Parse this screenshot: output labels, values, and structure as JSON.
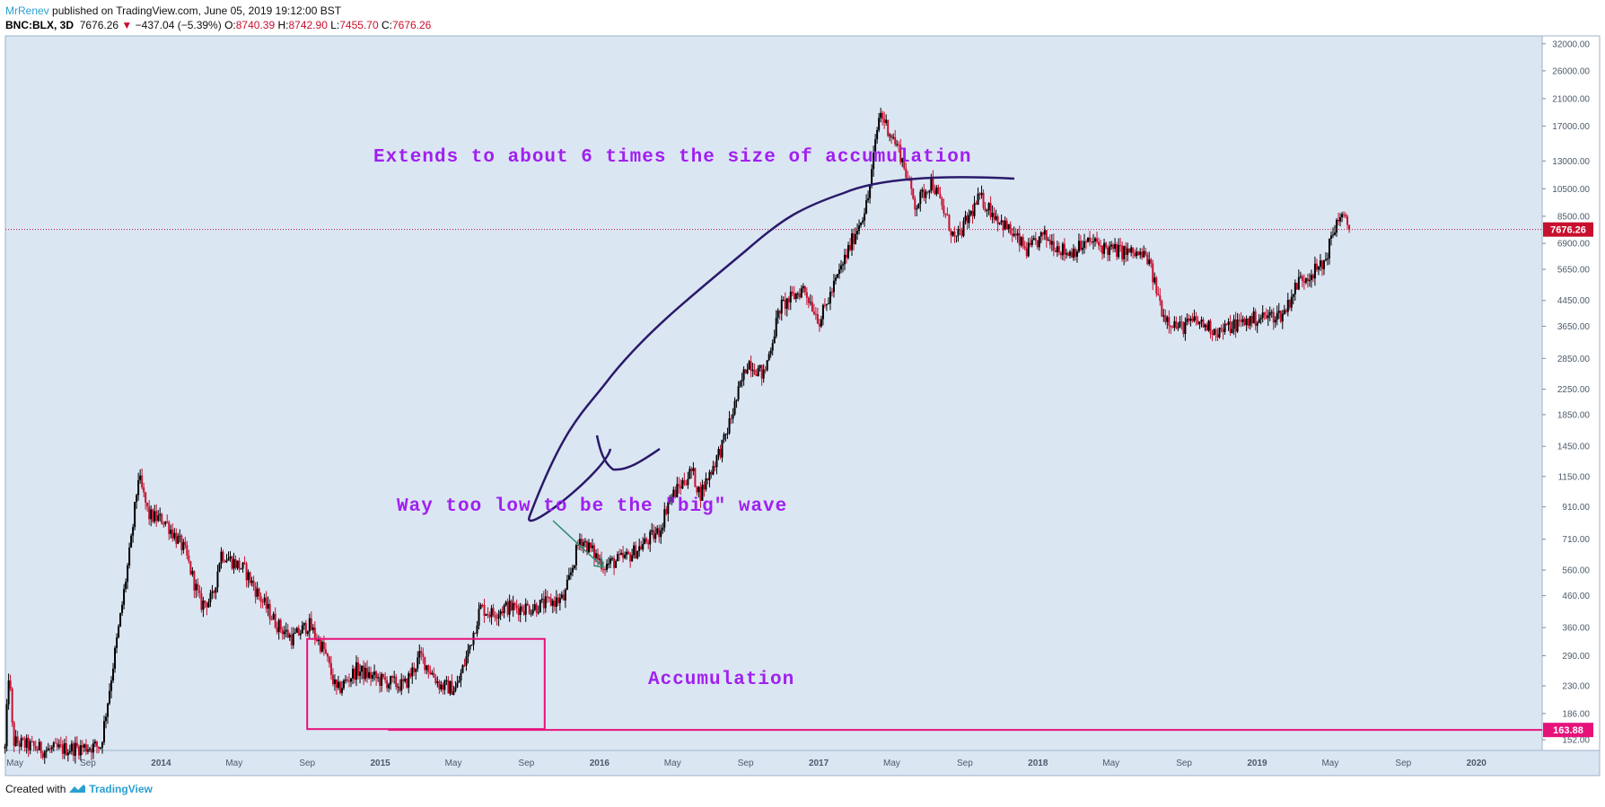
{
  "header": {
    "author": "MrRenev",
    "published": "published on TradingView.com, June 05, 2019 19:12:00 BST",
    "symbol": "BNC:BLX, 3D",
    "last": "7676.26",
    "change": "−437.04 (−5.39%)",
    "o_label": "O:",
    "o": "8740.39",
    "h_label": "H:",
    "h": "8742.90",
    "l_label": "L:",
    "l": "7455.70",
    "c_label": "C:",
    "c": "7676.26"
  },
  "footer": {
    "created_with": "Created with",
    "brand": "TradingView"
  },
  "colors": {
    "background": "#dbe6f3",
    "up": "#000000",
    "down": "#c8102e",
    "price_line": "#c8102e",
    "support": "#e6127a",
    "annotation": "#a020f0",
    "curve_arrow": "#2a1a6a",
    "small_arrow": "#2a8a6a"
  },
  "chart_data": {
    "type": "candlestick",
    "yscale": "log",
    "ylim": [
      140,
      34000
    ],
    "y_ticks": [
      "32000.00",
      "26000.00",
      "21000.00",
      "17000.00",
      "13000.00",
      "10500.00",
      "8500.00",
      "6900.00",
      "5650.00",
      "4450.00",
      "3650.00",
      "2850.00",
      "2250.00",
      "1850.00",
      "1450.00",
      "1150.00",
      "910.00",
      "710.00",
      "560.00",
      "460.00",
      "360.00",
      "290.00",
      "230.00",
      "186.00",
      "152.00"
    ],
    "x_ticks": [
      "May",
      "Sep",
      "2014",
      "May",
      "Sep",
      "2015",
      "May",
      "Sep",
      "2016",
      "May",
      "Sep",
      "2017",
      "May",
      "Sep",
      "2018",
      "May",
      "Sep",
      "2019",
      "May",
      "Sep",
      "2020"
    ],
    "price_markers": [
      {
        "value": 7676.26,
        "label": "7676.26",
        "color": "#c8102e"
      },
      {
        "value": 163.88,
        "label": "163.88",
        "color": "#e6127a"
      }
    ],
    "annotations": [
      {
        "text": "Extends to about 6 times the size of accumulation"
      },
      {
        "text": "Way too low to be the \"big\" wave"
      },
      {
        "text": "Accumulation"
      }
    ],
    "accumulation_box": {
      "x_start": "2014-09",
      "x_end": "2015-10",
      "y_low": 165,
      "y_high": 330
    },
    "path_date_range": [
      "2013-04-15",
      "2019-06-05"
    ],
    "path_key_prices": [
      [
        0,
        142
      ],
      [
        0.005,
        265
      ],
      [
        0.01,
        150
      ],
      [
        0.05,
        140
      ],
      [
        0.12,
        145
      ],
      [
        0.145,
        400
      ],
      [
        0.158,
        700
      ],
      [
        0.167,
        1150
      ],
      [
        0.18,
        850
      ],
      [
        0.2,
        820
      ],
      [
        0.225,
        650
      ],
      [
        0.245,
        430
      ],
      [
        0.26,
        450
      ],
      [
        0.27,
        640
      ],
      [
        0.3,
        560
      ],
      [
        0.32,
        450
      ],
      [
        0.34,
        370
      ],
      [
        0.36,
        330
      ],
      [
        0.38,
        370
      ],
      [
        0.4,
        300
      ],
      [
        0.415,
        220
      ],
      [
        0.44,
        260
      ],
      [
        0.47,
        240
      ],
      [
        0.5,
        230
      ],
      [
        0.52,
        290
      ],
      [
        0.545,
        230
      ],
      [
        0.565,
        225
      ],
      [
        0.58,
        300
      ],
      [
        0.595,
        420
      ],
      [
        0.61,
        400
      ],
      [
        0.625,
        420
      ],
      [
        0.66,
        420
      ],
      [
        0.7,
        450
      ],
      [
        0.72,
        720
      ],
      [
        0.75,
        580
      ],
      [
        0.78,
        620
      ],
      [
        0.82,
        760
      ],
      [
        0.83,
        950
      ],
      [
        0.86,
        1200
      ],
      [
        0.87,
        1000
      ],
      [
        0.9,
        1500
      ],
      [
        0.93,
        2800
      ],
      [
        0.95,
        2500
      ],
      [
        0.97,
        4200
      ],
      [
        1.0,
        4900
      ],
      [
        1.02,
        3800
      ],
      [
        1.05,
        6000
      ],
      [
        1.08,
        9500
      ],
      [
        1.095,
        19000
      ],
      [
        1.12,
        14000
      ],
      [
        1.14,
        9200
      ],
      [
        1.16,
        11200
      ],
      [
        1.19,
        7000
      ],
      [
        1.22,
        9800
      ],
      [
        1.25,
        8000
      ],
      [
        1.28,
        6500
      ],
      [
        1.3,
        7300
      ],
      [
        1.33,
        6400
      ],
      [
        1.36,
        7000
      ],
      [
        1.38,
        6600
      ],
      [
        1.41,
        6400
      ],
      [
        1.43,
        6200
      ],
      [
        1.45,
        4000
      ],
      [
        1.47,
        3600
      ],
      [
        1.49,
        3800
      ],
      [
        1.52,
        3500
      ],
      [
        1.54,
        3700
      ],
      [
        1.57,
        3900
      ],
      [
        1.6,
        4000
      ],
      [
        1.62,
        5200
      ],
      [
        1.65,
        5800
      ],
      [
        1.67,
        8600
      ],
      [
        1.685,
        7676
      ]
    ]
  }
}
